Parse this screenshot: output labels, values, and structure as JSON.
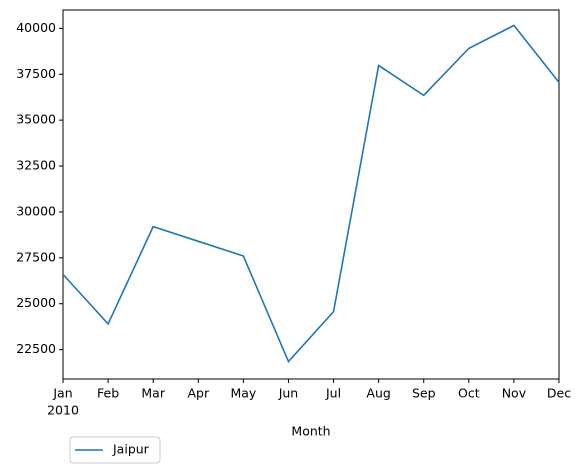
{
  "chart_data": {
    "type": "line",
    "xlabel": "Month",
    "year": "2010",
    "categories": [
      "Jan",
      "Feb",
      "Mar",
      "Apr",
      "May",
      "Jun",
      "Jul",
      "Aug",
      "Sep",
      "Oct",
      "Nov",
      "Dec"
    ],
    "series": [
      {
        "name": "Jaipur",
        "color": "#1f77b4",
        "values": [
          26600,
          23900,
          29200,
          28400,
          27600,
          21850,
          24570,
          37980,
          36350,
          38910,
          40160,
          37060
        ]
      }
    ],
    "ylim": [
      20900,
      41000
    ],
    "yticks": [
      22500,
      25000,
      27500,
      30000,
      32500,
      35000,
      37500,
      40000
    ],
    "grid": false,
    "legend": "lower left"
  }
}
